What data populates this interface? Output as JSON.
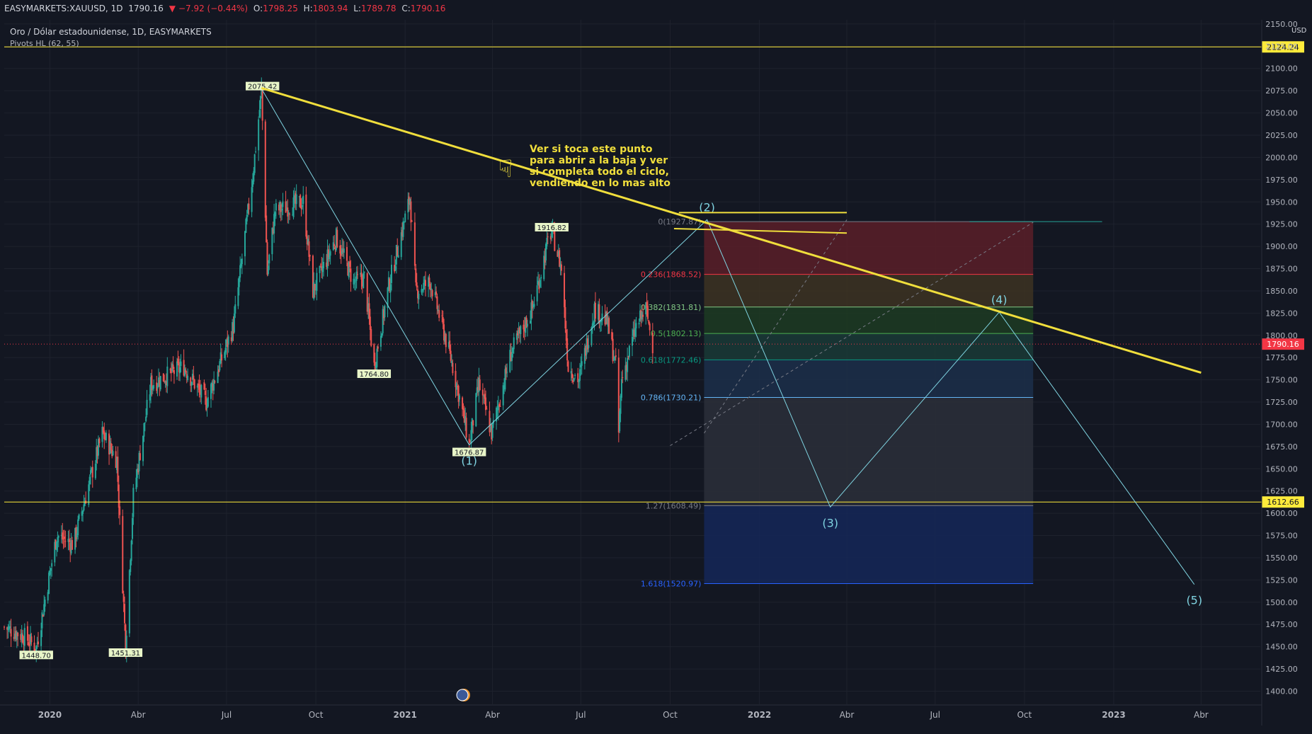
{
  "header": {
    "symbol": "EASYMARKETS:XAUUSD, 1D",
    "last": "1790.16",
    "change": "−7.92 (−0.44%)",
    "o_label": "O:",
    "o_value": "1798.25",
    "h_label": "H:",
    "h_value": "1803.94",
    "l_label": "L:",
    "l_value": "1789.78",
    "c_label": "C:",
    "c_value": "1790.16",
    "title": "Oro / Dólar estadounidense, 1D, EASYMARKETS",
    "indicator": "Pivots HL (62, 55)"
  },
  "colors": {
    "background": "#131722",
    "up": "#26a69a",
    "down": "#ef5350",
    "trendline": "#f0de3c",
    "wave": "#7fd3e0",
    "horizontal": "#ffeb3b",
    "price_line": "#f23645"
  },
  "chart_data": {
    "type": "candlestick",
    "symbol": "XAUUSD",
    "timeframe": "1D",
    "currency": "USD",
    "price_axis": {
      "min": 1400,
      "max": 2150,
      "step": 25,
      "tick_labels": [
        "1400.00",
        "1425.00",
        "1450.00",
        "1475.00",
        "1500.00",
        "1525.00",
        "1550.00",
        "1575.00",
        "1600.00",
        "1625.00",
        "1650.00",
        "1675.00",
        "1700.00",
        "1725.00",
        "1750.00",
        "1775.00",
        "1800.00",
        "1825.00",
        "1850.00",
        "1875.00",
        "1900.00",
        "1925.00",
        "1950.00",
        "1975.00",
        "2000.00",
        "2025.00",
        "2050.00",
        "2075.00",
        "2100.00",
        "2125.00",
        "2150.00"
      ]
    },
    "time_axis": {
      "start": "2019-11-15",
      "end": "2023-06-01",
      "ticks": [
        {
          "date": "2020-01-01",
          "label": "2020"
        },
        {
          "date": "2020-04-01",
          "label": "Abr"
        },
        {
          "date": "2020-07-01",
          "label": "Jul"
        },
        {
          "date": "2020-10-01",
          "label": "Oct"
        },
        {
          "date": "2021-01-01",
          "label": "2021"
        },
        {
          "date": "2021-04-01",
          "label": "Abr"
        },
        {
          "date": "2021-07-01",
          "label": "Jul"
        },
        {
          "date": "2021-10-01",
          "label": "Oct"
        },
        {
          "date": "2022-01-01",
          "label": "2022"
        },
        {
          "date": "2022-04-01",
          "label": "Abr"
        },
        {
          "date": "2022-07-01",
          "label": "Jul"
        },
        {
          "date": "2022-10-01",
          "label": "Oct"
        },
        {
          "date": "2023-01-01",
          "label": "2023"
        },
        {
          "date": "2023-04-01",
          "label": "Abr"
        }
      ]
    },
    "price_path": [
      [
        "2019-11-15",
        1472
      ],
      [
        "2019-12-05",
        1462
      ],
      [
        "2019-12-18",
        1449
      ],
      [
        "2020-01-08",
        1575
      ],
      [
        "2020-01-25",
        1565
      ],
      [
        "2020-02-24",
        1690
      ],
      [
        "2020-03-10",
        1660
      ],
      [
        "2020-03-19",
        1451
      ],
      [
        "2020-03-27",
        1620
      ],
      [
        "2020-04-14",
        1745
      ],
      [
        "2020-05-18",
        1765
      ],
      [
        "2020-06-10",
        1725
      ],
      [
        "2020-07-08",
        1810
      ],
      [
        "2020-07-28",
        1980
      ],
      [
        "2020-08-06",
        2075
      ],
      [
        "2020-08-12",
        1870
      ],
      [
        "2020-08-20",
        1940
      ],
      [
        "2020-09-18",
        1950
      ],
      [
        "2020-09-28",
        1850
      ],
      [
        "2020-10-22",
        1910
      ],
      [
        "2020-11-09",
        1860
      ],
      [
        "2020-11-20",
        1865
      ],
      [
        "2020-11-30",
        1765
      ],
      [
        "2020-12-15",
        1855
      ],
      [
        "2021-01-06",
        1955
      ],
      [
        "2021-01-12",
        1850
      ],
      [
        "2021-01-27",
        1860
      ],
      [
        "2021-02-18",
        1770
      ],
      [
        "2021-02-26",
        1730
      ],
      [
        "2021-03-08",
        1677
      ],
      [
        "2021-03-18",
        1745
      ],
      [
        "2021-03-31",
        1690
      ],
      [
        "2021-04-20",
        1780
      ],
      [
        "2021-05-12",
        1830
      ],
      [
        "2021-05-28",
        1905
      ],
      [
        "2021-06-01",
        1918
      ],
      [
        "2021-06-11",
        1875
      ],
      [
        "2021-06-18",
        1765
      ],
      [
        "2021-06-29",
        1750
      ],
      [
        "2021-07-15",
        1830
      ],
      [
        "2021-07-28",
        1815
      ],
      [
        "2021-08-06",
        1765
      ],
      [
        "2021-08-09",
        1690
      ],
      [
        "2021-08-12",
        1750
      ],
      [
        "2021-08-27",
        1810
      ],
      [
        "2021-09-06",
        1830
      ],
      [
        "2021-09-13",
        1790
      ]
    ],
    "series": [
      {
        "name": "Pivots HL (62, 55)",
        "points": [
          {
            "date": "2019-12-18",
            "price": 1448.7,
            "label": "1448.70"
          },
          {
            "date": "2020-03-19",
            "price": 1451.31,
            "label": "1451.31"
          },
          {
            "date": "2020-08-07",
            "price": 2075.42,
            "label": "2075.42"
          },
          {
            "date": "2020-11-30",
            "price": 1764.8,
            "label": "1764.80"
          },
          {
            "date": "2021-03-08",
            "price": 1676.87,
            "label": "1676.87"
          },
          {
            "date": "2021-06-01",
            "price": 1916.82,
            "label": "1916.82"
          }
        ]
      }
    ],
    "horizontal_lines": [
      {
        "price": 2124.24,
        "label": "2124.24"
      },
      {
        "price": 1612.66,
        "label": "1612.66"
      }
    ],
    "last_price": {
      "price": 1790.16,
      "label": "1790.16"
    },
    "fibonacci": {
      "start_date": "2021-11-05",
      "end_date": "2022-10-10",
      "levels": [
        {
          "ratio": "0",
          "price": 1927.87,
          "label": "0(1927.87)",
          "color": "#787b86",
          "fill": "#5b1e28"
        },
        {
          "ratio": "0.236",
          "price": 1868.52,
          "label": "0.236(1868.52)",
          "color": "#f23645",
          "fill": "#3d3322"
        },
        {
          "ratio": "0.382",
          "price": 1831.81,
          "label": "0.382(1831.81)",
          "color": "#81c784",
          "fill": "#1d3b22"
        },
        {
          "ratio": "0.5",
          "price": 1802.13,
          "label": "0.5(1802.13)",
          "color": "#4caf50",
          "fill": "#1a3a36"
        },
        {
          "ratio": "0.618",
          "price": 1772.46,
          "label": "0.618(1772.46)",
          "color": "#089981",
          "fill": "#1c2f4a"
        },
        {
          "ratio": "0.786",
          "price": 1730.21,
          "label": "0.786(1730.21)",
          "color": "#64b5f6",
          "fill": "#2b2f3a"
        },
        {
          "ratio": "1.27",
          "price": 1608.49,
          "label": "1.27(1608.49)",
          "color": "#787b86",
          "fill": "#152758"
        },
        {
          "ratio": "1.618",
          "price": 1520.97,
          "label": "1.618(1520.97)",
          "color": "#2962ff",
          "fill": null
        }
      ]
    },
    "trendline": {
      "from": {
        "date": "2020-08-06",
        "price": 2078
      },
      "to": {
        "date": "2023-04-01",
        "price": 1758
      }
    },
    "wave_count": [
      {
        "date": "2020-08-07",
        "price": 2075.42,
        "label": ""
      },
      {
        "date": "2021-03-08",
        "price": 1676.87,
        "label": "(1)"
      },
      {
        "date": "2021-11-08",
        "price": 1930,
        "label": "(2)"
      },
      {
        "date": "2022-03-15",
        "price": 1607,
        "label": "(3)"
      },
      {
        "date": "2022-09-05",
        "price": 1826,
        "label": "(4)"
      },
      {
        "date": "2023-03-25",
        "price": 1520,
        "label": "(5)"
      }
    ],
    "annotation": {
      "lines": [
        "Ver si toca este punto",
        "para abrir a la baja y ver",
        "si completa todo el ciclo,",
        "vendiendo en lo mas alto"
      ],
      "icon": "pointing-hand-icon"
    }
  }
}
